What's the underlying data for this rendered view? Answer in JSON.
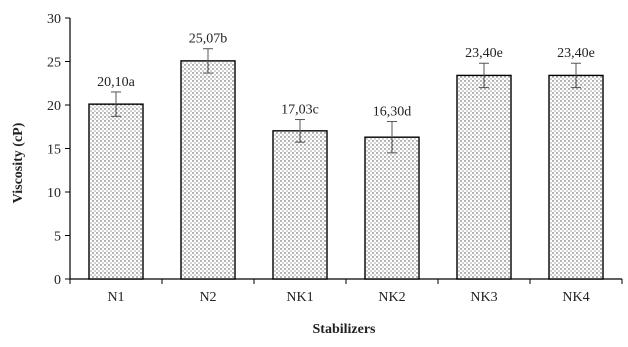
{
  "chart_data": {
    "type": "bar",
    "categories": [
      "N1",
      "N2",
      "NK1",
      "NK2",
      "NK3",
      "NK4"
    ],
    "values": [
      20.1,
      25.07,
      17.03,
      16.3,
      23.4,
      23.4
    ],
    "errors": [
      1.4,
      1.4,
      1.3,
      1.8,
      1.4,
      1.4
    ],
    "data_labels": [
      "20,10a",
      "25,07b",
      "17,03c",
      "16,30d",
      "23,40e",
      "23,40e"
    ],
    "xlabel": "Stabilizers",
    "ylabel": "Viscosity (cP)",
    "ylim": [
      0,
      30
    ],
    "yticks": [
      0,
      5,
      10,
      15,
      20,
      25,
      30
    ],
    "grid": false,
    "bar_fill": "dotted pattern",
    "colors": {
      "bar_fill": "#ffffff",
      "bar_dots": "#444444",
      "bar_stroke": "#000000",
      "axis": "#000000",
      "error_bar": "#555555"
    }
  }
}
